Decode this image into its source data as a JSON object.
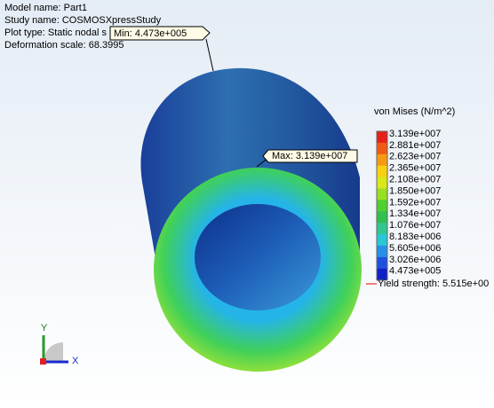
{
  "header": {
    "model_name": "Model name: Part1",
    "study_name": "Study name: COSMOSXpressStudy",
    "plot_type": "Plot type: Static nodal s",
    "deformation_scale": "Deformation scale: 68.3995"
  },
  "legend": {
    "title": "von Mises (N/m^2)",
    "labels": [
      "3.139e+007",
      "2.881e+007",
      "2.623e+007",
      "2.365e+007",
      "2.108e+007",
      "1.850e+007",
      "1.592e+007",
      "1.334e+007",
      "1.076e+007",
      "8.183e+006",
      "5.605e+006",
      "3.026e+006",
      "4.473e+005"
    ],
    "yield_strength": "Yield strength: 5.515e+00"
  },
  "callouts": {
    "min": "Min: 4.473e+005",
    "max": "Max: 3.139e+007"
  },
  "triad": {
    "y": "Y",
    "x": "X"
  }
}
